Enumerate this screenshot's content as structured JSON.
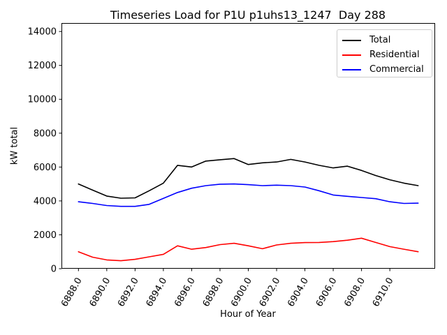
{
  "title": "Timeseries Load for P1U p1uhs13_1247  Day 288",
  "chart_data": {
    "type": "line",
    "title": "Timeseries Load for P1U p1uhs13_1247  Day 288",
    "xlabel": "Hour of Year",
    "ylabel": "kW total",
    "grid": false,
    "xlim": [
      6886.8,
      6913.2
    ],
    "ylim": [
      0,
      14500
    ],
    "x": [
      6888,
      6889,
      6890,
      6891,
      6892,
      6893,
      6894,
      6895,
      6896,
      6897,
      6898,
      6899,
      6900,
      6901,
      6902,
      6903,
      6904,
      6905,
      6906,
      6907,
      6908,
      6909,
      6910,
      6911,
      6912
    ],
    "series": [
      {
        "name": "Total",
        "color": "#000000",
        "values": [
          5000,
          4640,
          4290,
          4160,
          4180,
          4600,
          5050,
          6100,
          6000,
          6350,
          6430,
          6500,
          6150,
          6250,
          6300,
          6450,
          6300,
          6100,
          5950,
          6050,
          5800,
          5500,
          5250,
          5050,
          4900
        ]
      },
      {
        "name": "Residential",
        "color": "#ff0000",
        "values": [
          1000,
          680,
          520,
          470,
          550,
          700,
          850,
          1350,
          1150,
          1250,
          1420,
          1500,
          1350,
          1180,
          1400,
          1500,
          1540,
          1550,
          1600,
          1680,
          1800,
          1550,
          1300,
          1150,
          1000
        ]
      },
      {
        "name": "Commercial",
        "color": "#0000ff",
        "values": [
          3950,
          3850,
          3730,
          3680,
          3680,
          3800,
          4150,
          4500,
          4750,
          4900,
          4990,
          5000,
          4960,
          4900,
          4930,
          4900,
          4820,
          4600,
          4350,
          4270,
          4200,
          4130,
          3950,
          3850,
          3870
        ]
      }
    ],
    "xticks": [
      6888,
      6890,
      6892,
      6894,
      6896,
      6898,
      6900,
      6902,
      6904,
      6906,
      6908,
      6910
    ],
    "xtick_labels": [
      "6888.0",
      "6890.0",
      "6892.0",
      "6894.0",
      "6896.0",
      "6898.0",
      "6900.0",
      "6902.0",
      "6904.0",
      "6906.0",
      "6908.0",
      "6910.0"
    ],
    "yticks": [
      0,
      2000,
      4000,
      6000,
      8000,
      10000,
      12000,
      14000
    ],
    "ytick_labels": [
      "0",
      "2000",
      "4000",
      "6000",
      "8000",
      "10000",
      "12000",
      "14000"
    ],
    "legend": {
      "position": "upper right",
      "items": [
        "Total",
        "Residential",
        "Commercial"
      ]
    }
  }
}
